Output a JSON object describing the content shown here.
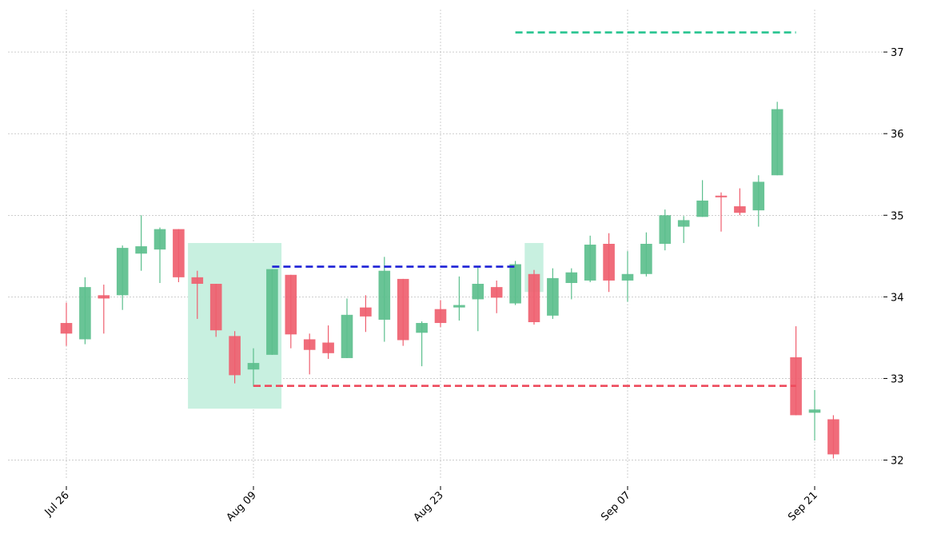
{
  "chart_data": {
    "type": "candlestick",
    "title": "",
    "xlabel": "",
    "ylabel": "",
    "ylim": [
      31.78,
      37.52
    ],
    "grid": true,
    "y_axis_side": "right",
    "colors": {
      "up": "#5cbf8d",
      "down": "#ef5f6f",
      "zone": "#c8f0e0",
      "resistance": "#1d20d6",
      "support": "#ee4a5c",
      "target": "#26c48f"
    },
    "y_ticks": [
      {
        "value": 32,
        "label": "32"
      },
      {
        "value": 33,
        "label": "33"
      },
      {
        "value": 34,
        "label": "34"
      },
      {
        "value": 35,
        "label": "35"
      },
      {
        "value": 36,
        "label": "36"
      },
      {
        "value": 37,
        "label": "37"
      }
    ],
    "x_ticks": [
      {
        "index": 0,
        "label": "Jul 26"
      },
      {
        "index": 10,
        "label": "Aug 09"
      },
      {
        "index": 20,
        "label": "Aug 23"
      },
      {
        "index": 30,
        "label": "Sep 07"
      },
      {
        "index": 40,
        "label": "Sep 21"
      }
    ],
    "candles": [
      {
        "i": 0,
        "open": 33.68,
        "high": 33.93,
        "low": 33.4,
        "close": 33.55
      },
      {
        "i": 1,
        "open": 33.48,
        "high": 34.24,
        "low": 33.42,
        "close": 34.12
      },
      {
        "i": 2,
        "open": 34.02,
        "high": 34.15,
        "low": 33.55,
        "close": 33.98
      },
      {
        "i": 3,
        "open": 34.02,
        "high": 34.63,
        "low": 33.84,
        "close": 34.6
      },
      {
        "i": 4,
        "open": 34.53,
        "high": 35.0,
        "low": 34.32,
        "close": 34.62
      },
      {
        "i": 5,
        "open": 34.58,
        "high": 34.85,
        "low": 34.17,
        "close": 34.83
      },
      {
        "i": 6,
        "open": 34.83,
        "high": 34.83,
        "low": 34.18,
        "close": 34.24
      },
      {
        "i": 7,
        "open": 34.24,
        "high": 34.32,
        "low": 33.73,
        "close": 34.16
      },
      {
        "i": 8,
        "open": 34.16,
        "high": 34.16,
        "low": 33.51,
        "close": 33.59
      },
      {
        "i": 9,
        "open": 33.52,
        "high": 33.58,
        "low": 32.94,
        "close": 33.04
      },
      {
        "i": 10,
        "open": 33.11,
        "high": 33.37,
        "low": 32.9,
        "close": 33.19
      },
      {
        "i": 11,
        "open": 33.29,
        "high": 34.34,
        "low": 33.29,
        "close": 34.34
      },
      {
        "i": 12,
        "open": 34.27,
        "high": 34.27,
        "low": 33.37,
        "close": 33.54
      },
      {
        "i": 13,
        "open": 33.48,
        "high": 33.55,
        "low": 33.05,
        "close": 33.35
      },
      {
        "i": 14,
        "open": 33.44,
        "high": 33.65,
        "low": 33.24,
        "close": 33.31
      },
      {
        "i": 15,
        "open": 33.25,
        "high": 33.98,
        "low": 33.25,
        "close": 33.78
      },
      {
        "i": 16,
        "open": 33.87,
        "high": 34.02,
        "low": 33.57,
        "close": 33.76
      },
      {
        "i": 17,
        "open": 33.72,
        "high": 34.49,
        "low": 33.45,
        "close": 34.32
      },
      {
        "i": 18,
        "open": 34.22,
        "high": 34.22,
        "low": 33.4,
        "close": 33.47
      },
      {
        "i": 19,
        "open": 33.56,
        "high": 33.7,
        "low": 33.15,
        "close": 33.68
      },
      {
        "i": 20,
        "open": 33.85,
        "high": 33.96,
        "low": 33.63,
        "close": 33.68
      },
      {
        "i": 21,
        "open": 33.87,
        "high": 34.25,
        "low": 33.71,
        "close": 33.9
      },
      {
        "i": 22,
        "open": 33.97,
        "high": 34.36,
        "low": 33.58,
        "close": 34.16
      },
      {
        "i": 23,
        "open": 34.12,
        "high": 34.2,
        "low": 33.8,
        "close": 33.99
      },
      {
        "i": 24,
        "open": 33.92,
        "high": 34.44,
        "low": 33.9,
        "close": 34.4
      },
      {
        "i": 25,
        "open": 34.28,
        "high": 34.33,
        "low": 33.66,
        "close": 33.69
      },
      {
        "i": 26,
        "open": 33.77,
        "high": 34.35,
        "low": 33.73,
        "close": 34.23
      },
      {
        "i": 27,
        "open": 34.17,
        "high": 34.35,
        "low": 33.97,
        "close": 34.3
      },
      {
        "i": 28,
        "open": 34.2,
        "high": 34.75,
        "low": 34.18,
        "close": 34.64
      },
      {
        "i": 29,
        "open": 34.65,
        "high": 34.78,
        "low": 34.06,
        "close": 34.2
      },
      {
        "i": 30,
        "open": 34.2,
        "high": 34.56,
        "low": 33.94,
        "close": 34.28
      },
      {
        "i": 31,
        "open": 34.28,
        "high": 34.79,
        "low": 34.25,
        "close": 34.65
      },
      {
        "i": 32,
        "open": 34.65,
        "high": 35.07,
        "low": 34.57,
        "close": 35.0
      },
      {
        "i": 33,
        "open": 34.86,
        "high": 34.99,
        "low": 34.66,
        "close": 34.94
      },
      {
        "i": 34,
        "open": 34.98,
        "high": 35.43,
        "low": 34.98,
        "close": 35.18
      },
      {
        "i": 35,
        "open": 35.24,
        "high": 35.28,
        "low": 34.8,
        "close": 35.22
      },
      {
        "i": 36,
        "open": 35.11,
        "high": 35.33,
        "low": 35.0,
        "close": 35.03
      },
      {
        "i": 37,
        "open": 35.06,
        "high": 35.49,
        "low": 34.86,
        "close": 35.41
      },
      {
        "i": 38,
        "open": 35.49,
        "high": 36.39,
        "low": 35.49,
        "close": 36.3
      },
      {
        "i": 39,
        "open": 33.26,
        "high": 33.64,
        "low": 32.55,
        "close": 32.55
      },
      {
        "i": 40,
        "open": 32.58,
        "high": 32.86,
        "low": 32.24,
        "close": 32.62
      },
      {
        "i": 41,
        "open": 32.5,
        "high": 32.55,
        "low": 32.02,
        "close": 32.07
      }
    ],
    "zones": [
      {
        "x_start": 6.5,
        "x_end": 11.5,
        "y_low": 32.63,
        "y_high": 34.66
      },
      {
        "x_start": 24.5,
        "x_end": 25.5,
        "y_low": 34.06,
        "y_high": 34.66
      }
    ],
    "levels": [
      {
        "kind": "resistance",
        "x_start": 11.0,
        "x_end": 24.0,
        "y": 34.37
      },
      {
        "kind": "support",
        "x_start": 10.0,
        "x_end": 39.0,
        "y": 32.91
      },
      {
        "kind": "target",
        "x_start": 24.0,
        "x_end": 39.0,
        "y": 37.24
      }
    ]
  }
}
